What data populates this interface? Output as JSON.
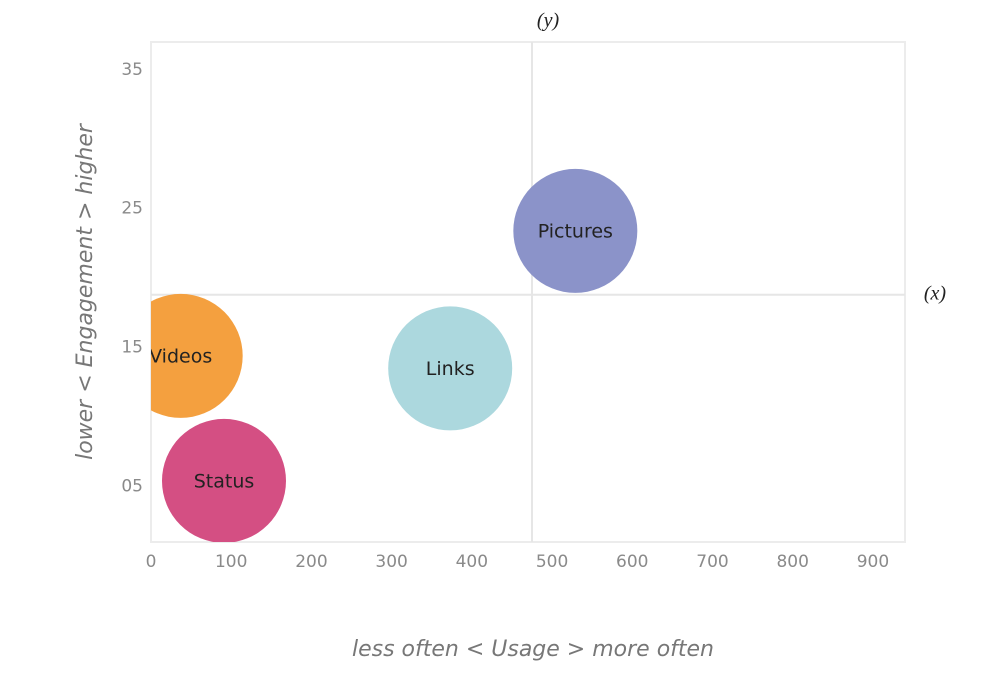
{
  "chart_data": {
    "type": "bubble",
    "x_label": "less often < Usage > more often",
    "y_label": "lower < Engagement > higher",
    "series": [
      {
        "name": "Pictures",
        "color": "#8b93c9",
        "x": [
          529
        ],
        "values": [
          23.4
        ]
      },
      {
        "name": "Links",
        "color": "#acd8de",
        "x": [
          373
        ],
        "values": [
          13.5
        ]
      },
      {
        "name": "Videos",
        "color": "#f4a03f",
        "x": [
          37
        ],
        "values": [
          14.4
        ]
      },
      {
        "name": "Status",
        "color": "#d44f83",
        "x": [
          91
        ],
        "values": [
          5.4
        ]
      }
    ],
    "xlim": [
      0,
      940
    ],
    "ylim": [
      1,
      37
    ],
    "xticks": [
      0,
      100,
      200,
      300,
      400,
      500,
      600,
      700,
      800,
      900
    ],
    "yticks": [
      {
        "value": 5,
        "label": "05"
      },
      15,
      25,
      35
    ],
    "reference_lines": [
      {
        "axis": "x",
        "value": 475,
        "label": "(y)"
      },
      {
        "axis": "y",
        "value": 18.8,
        "label": "(x)"
      }
    ],
    "grid": false
  }
}
